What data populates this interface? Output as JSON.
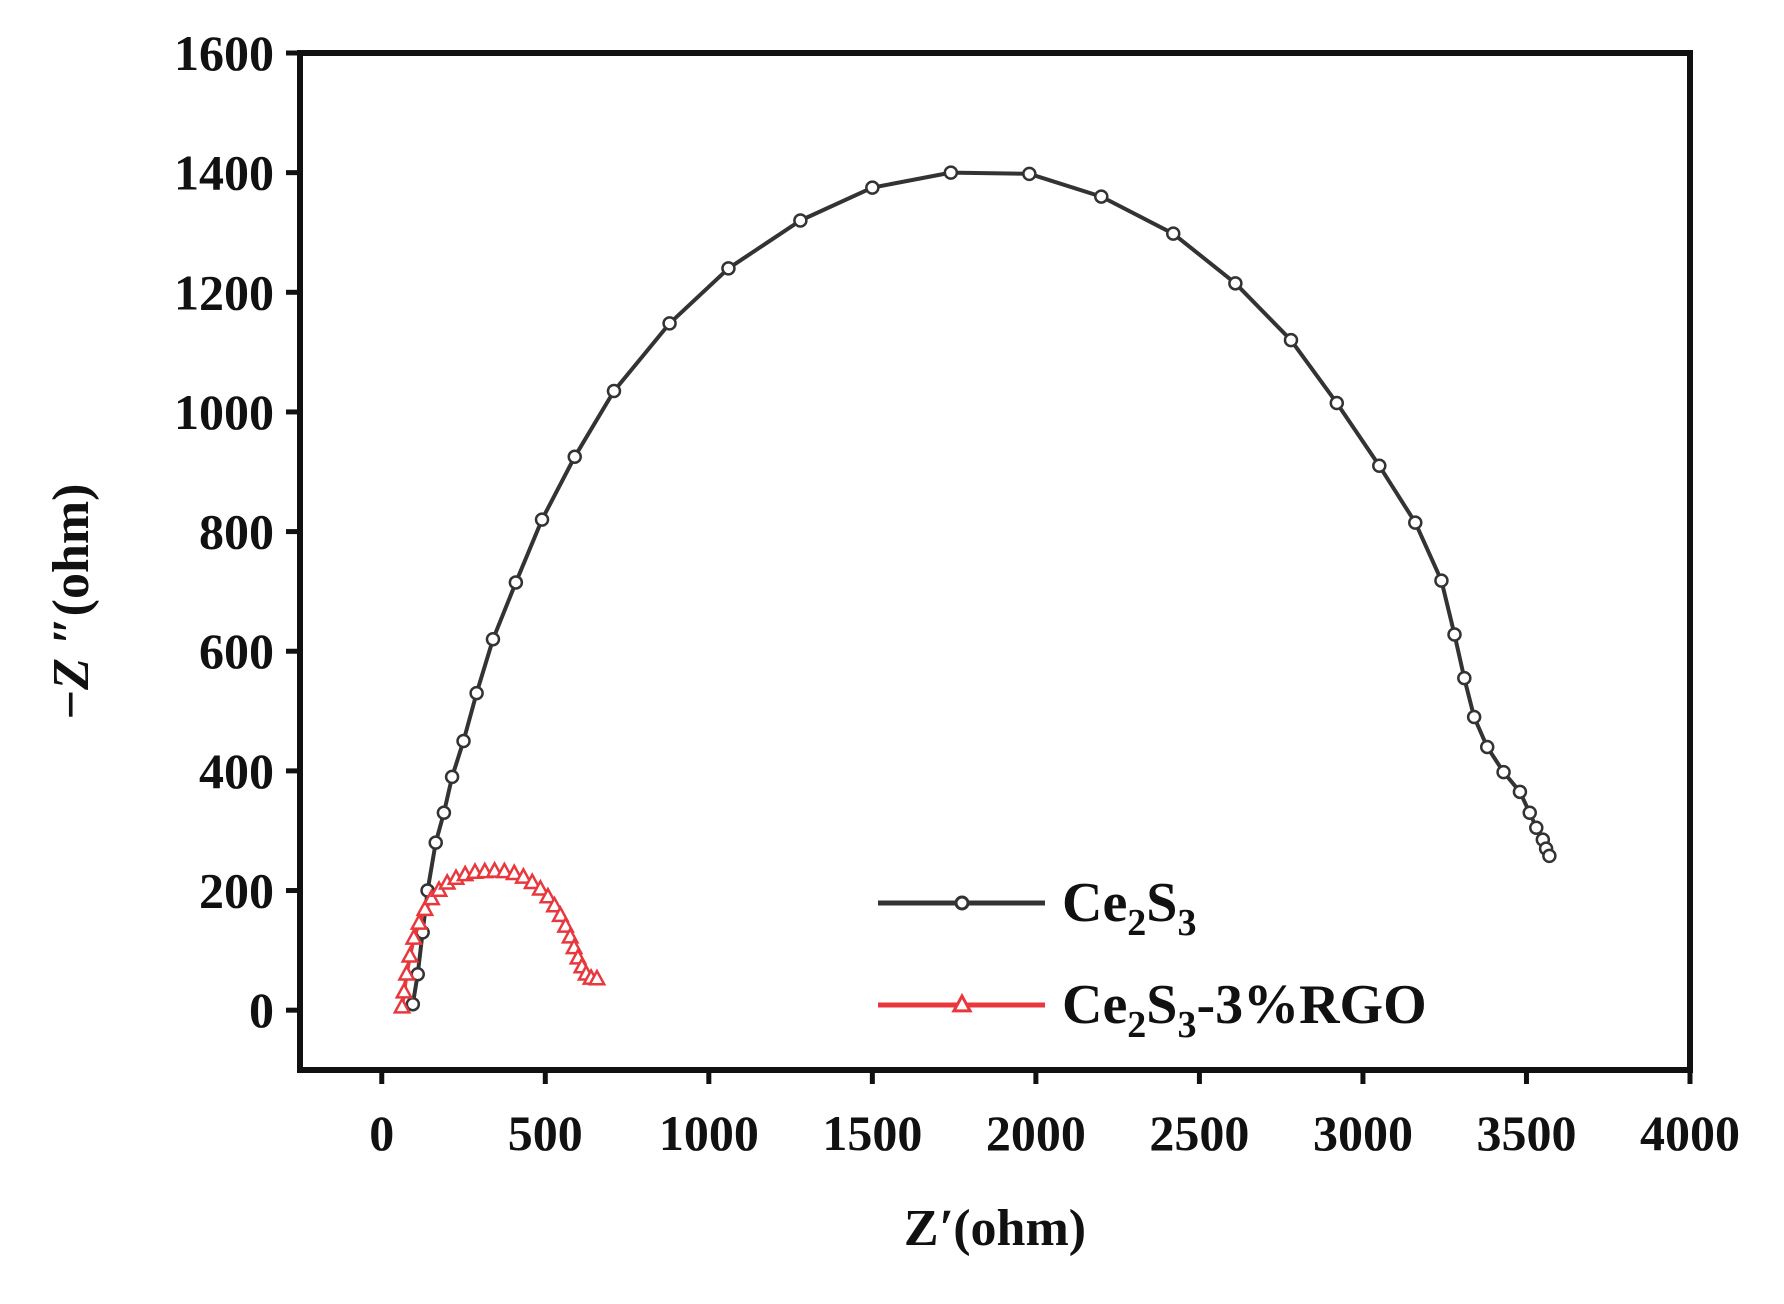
{
  "chart_data": {
    "type": "line",
    "xlabel": {
      "main": "Z",
      "prime": "′",
      "unit": "(ohm)"
    },
    "ylabel": {
      "sign": "−",
      "main": "Z",
      "prime": " ″",
      "unit": "(ohm)"
    },
    "xlim": [
      -250,
      4000
    ],
    "ylim": [
      -100,
      1600
    ],
    "xticks": [
      0,
      500,
      1000,
      1500,
      2000,
      2500,
      3000,
      3500,
      4000
    ],
    "yticks": [
      0,
      200,
      400,
      600,
      800,
      1000,
      1200,
      1400,
      1600
    ],
    "grid": false,
    "legend_position": "bottom-right",
    "series": [
      {
        "name": "Ce2S3",
        "legend": {
          "a": "Ce",
          "sub1": "2",
          "b": "S",
          "sub2": "3",
          "suffix": ""
        },
        "color": "#333333",
        "marker": "open-circle",
        "points": [
          [
            95,
            10
          ],
          [
            110,
            60
          ],
          [
            125,
            130
          ],
          [
            140,
            200
          ],
          [
            165,
            280
          ],
          [
            190,
            330
          ],
          [
            215,
            390
          ],
          [
            250,
            450
          ],
          [
            290,
            530
          ],
          [
            340,
            620
          ],
          [
            410,
            715
          ],
          [
            490,
            820
          ],
          [
            590,
            925
          ],
          [
            710,
            1035
          ],
          [
            880,
            1148
          ],
          [
            1060,
            1240
          ],
          [
            1280,
            1320
          ],
          [
            1500,
            1375
          ],
          [
            1740,
            1400
          ],
          [
            1980,
            1398
          ],
          [
            2200,
            1360
          ],
          [
            2420,
            1298
          ],
          [
            2610,
            1215
          ],
          [
            2780,
            1120
          ],
          [
            2920,
            1015
          ],
          [
            3050,
            910
          ],
          [
            3160,
            815
          ],
          [
            3240,
            718
          ],
          [
            3280,
            628
          ],
          [
            3310,
            555
          ],
          [
            3340,
            490
          ],
          [
            3380,
            440
          ],
          [
            3430,
            398
          ],
          [
            3480,
            365
          ],
          [
            3510,
            330
          ],
          [
            3530,
            305
          ],
          [
            3550,
            285
          ],
          [
            3560,
            270
          ],
          [
            3570,
            258
          ]
        ]
      },
      {
        "name": "Ce2S3-3%RGO",
        "legend": {
          "a": "Ce",
          "sub1": "2",
          "b": "S",
          "sub2": "3",
          "suffix": "-3%RGO"
        },
        "color": "#e8383d",
        "marker": "open-triangle",
        "points": [
          [
            62,
            5
          ],
          [
            68,
            30
          ],
          [
            76,
            60
          ],
          [
            86,
            90
          ],
          [
            98,
            120
          ],
          [
            114,
            145
          ],
          [
            132,
            168
          ],
          [
            152,
            186
          ],
          [
            175,
            200
          ],
          [
            200,
            212
          ],
          [
            227,
            220
          ],
          [
            255,
            226
          ],
          [
            285,
            230
          ],
          [
            315,
            231
          ],
          [
            345,
            232
          ],
          [
            375,
            231
          ],
          [
            405,
            228
          ],
          [
            433,
            222
          ],
          [
            460,
            213
          ],
          [
            485,
            202
          ],
          [
            508,
            189
          ],
          [
            528,
            174
          ],
          [
            546,
            158
          ],
          [
            562,
            140
          ],
          [
            576,
            122
          ],
          [
            588,
            104
          ],
          [
            600,
            87
          ],
          [
            612,
            72
          ],
          [
            625,
            60
          ],
          [
            640,
            53
          ],
          [
            658,
            52
          ]
        ]
      }
    ]
  }
}
